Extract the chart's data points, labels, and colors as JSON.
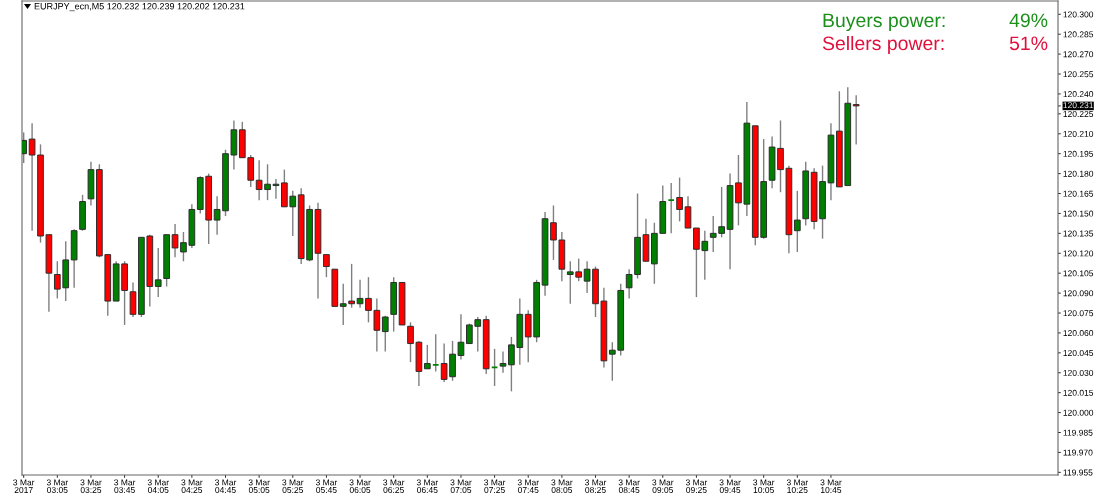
{
  "chart_data": {
    "type": "candlestick",
    "title": "EURJPY_ecn,M5 120.232 120.239 120.202 120.231",
    "x": [
      "2017-03-03T02:45",
      "2017-03-03T02:50",
      "2017-03-03T02:55",
      "2017-03-03T03:00",
      "2017-03-03T03:05",
      "2017-03-03T03:10",
      "2017-03-03T03:15",
      "2017-03-03T03:20",
      "2017-03-03T03:25",
      "2017-03-03T03:30",
      "2017-03-03T03:35",
      "2017-03-03T03:40",
      "2017-03-03T03:45",
      "2017-03-03T03:50",
      "2017-03-03T03:55",
      "2017-03-03T04:00",
      "2017-03-03T04:05",
      "2017-03-03T04:10",
      "2017-03-03T04:15",
      "2017-03-03T04:20",
      "2017-03-03T04:25",
      "2017-03-03T04:30",
      "2017-03-03T04:35",
      "2017-03-03T04:40",
      "2017-03-03T04:45",
      "2017-03-03T04:50",
      "2017-03-03T04:55",
      "2017-03-03T05:00",
      "2017-03-03T05:05",
      "2017-03-03T05:10",
      "2017-03-03T05:15",
      "2017-03-03T05:20",
      "2017-03-03T05:25",
      "2017-03-03T05:30",
      "2017-03-03T05:35",
      "2017-03-03T05:40",
      "2017-03-03T05:45",
      "2017-03-03T05:50",
      "2017-03-03T05:55",
      "2017-03-03T06:00",
      "2017-03-03T06:05",
      "2017-03-03T06:10",
      "2017-03-03T06:15",
      "2017-03-03T06:20",
      "2017-03-03T06:25",
      "2017-03-03T06:30",
      "2017-03-03T06:35",
      "2017-03-03T06:40",
      "2017-03-03T06:45",
      "2017-03-03T06:50",
      "2017-03-03T06:55",
      "2017-03-03T07:00",
      "2017-03-03T07:05",
      "2017-03-03T07:10",
      "2017-03-03T07:15",
      "2017-03-03T07:20",
      "2017-03-03T07:25",
      "2017-03-03T07:30",
      "2017-03-03T07:35",
      "2017-03-03T07:40",
      "2017-03-03T07:45",
      "2017-03-03T07:50",
      "2017-03-03T07:55",
      "2017-03-03T08:00",
      "2017-03-03T08:05",
      "2017-03-03T08:10",
      "2017-03-03T08:15",
      "2017-03-03T08:20",
      "2017-03-03T08:25",
      "2017-03-03T08:30",
      "2017-03-03T08:35",
      "2017-03-03T08:40",
      "2017-03-03T08:45",
      "2017-03-03T08:50",
      "2017-03-03T08:55",
      "2017-03-03T09:00",
      "2017-03-03T09:05",
      "2017-03-03T09:10",
      "2017-03-03T09:15",
      "2017-03-03T09:20",
      "2017-03-03T09:25",
      "2017-03-03T09:30",
      "2017-03-03T09:35",
      "2017-03-03T09:40",
      "2017-03-03T09:45",
      "2017-03-03T09:50",
      "2017-03-03T09:55",
      "2017-03-03T10:00",
      "2017-03-03T10:05",
      "2017-03-03T10:10",
      "2017-03-03T10:15",
      "2017-03-03T10:20",
      "2017-03-03T10:25",
      "2017-03-03T10:30",
      "2017-03-03T10:35",
      "2017-03-03T10:40",
      "2017-03-03T10:45",
      "2017-03-03T10:50",
      "2017-03-03T10:55",
      "2017-03-03T11:00"
    ],
    "ohlc": [
      [
        120.195,
        120.211,
        120.188,
        120.205
      ],
      [
        120.206,
        120.218,
        120.137,
        120.194
      ],
      [
        120.194,
        120.202,
        120.128,
        120.133
      ],
      [
        120.134,
        120.134,
        120.076,
        120.105
      ],
      [
        120.104,
        120.114,
        120.086,
        120.093
      ],
      [
        120.094,
        120.129,
        120.084,
        120.115
      ],
      [
        120.115,
        120.138,
        120.094,
        120.137
      ],
      [
        120.138,
        120.164,
        120.137,
        120.159
      ],
      [
        120.161,
        120.189,
        120.156,
        120.183
      ],
      [
        120.183,
        120.187,
        120.117,
        120.118
      ],
      [
        120.119,
        120.119,
        120.073,
        120.084
      ],
      [
        120.084,
        120.114,
        120.084,
        120.112
      ],
      [
        120.112,
        120.114,
        120.066,
        120.092
      ],
      [
        120.091,
        120.098,
        120.072,
        120.074
      ],
      [
        120.074,
        120.132,
        120.072,
        120.132
      ],
      [
        120.133,
        120.134,
        120.08,
        120.095
      ],
      [
        120.095,
        120.124,
        120.087,
        120.1
      ],
      [
        120.101,
        120.134,
        120.095,
        120.134
      ],
      [
        120.134,
        120.142,
        120.117,
        120.124
      ],
      [
        120.121,
        120.136,
        120.114,
        120.128
      ],
      [
        120.126,
        120.157,
        120.124,
        120.153
      ],
      [
        120.153,
        120.178,
        120.15,
        120.177
      ],
      [
        120.178,
        120.18,
        120.127,
        120.145
      ],
      [
        120.145,
        120.163,
        120.134,
        120.153
      ],
      [
        120.152,
        120.198,
        120.148,
        120.195
      ],
      [
        120.194,
        120.22,
        120.183,
        120.213
      ],
      [
        120.213,
        120.219,
        120.192,
        120.192
      ],
      [
        120.192,
        120.194,
        120.17,
        120.175
      ],
      [
        120.175,
        120.19,
        120.16,
        120.168
      ],
      [
        120.168,
        120.187,
        120.16,
        120.172
      ],
      [
        120.171,
        120.176,
        120.161,
        120.172
      ],
      [
        120.173,
        120.183,
        120.155,
        120.155
      ],
      [
        120.155,
        120.167,
        120.133,
        120.163
      ],
      [
        120.164,
        120.169,
        120.112,
        120.116
      ],
      [
        120.115,
        120.156,
        120.114,
        120.153
      ],
      [
        120.153,
        120.158,
        120.086,
        120.12
      ],
      [
        120.119,
        120.119,
        120.102,
        120.11
      ],
      [
        120.108,
        120.108,
        120.08,
        120.08
      ],
      [
        120.08,
        120.097,
        120.066,
        120.082
      ],
      [
        120.084,
        120.112,
        120.079,
        120.082
      ],
      [
        120.082,
        120.1,
        120.079,
        120.086
      ],
      [
        120.086,
        120.102,
        120.068,
        120.077
      ],
      [
        120.077,
        120.086,
        120.046,
        120.062
      ],
      [
        120.061,
        120.073,
        120.046,
        120.072
      ],
      [
        120.074,
        120.102,
        120.061,
        120.098
      ],
      [
        120.098,
        120.098,
        120.066,
        120.066
      ],
      [
        120.065,
        120.068,
        120.038,
        120.052
      ],
      [
        120.053,
        120.054,
        120.02,
        120.031
      ],
      [
        120.033,
        120.051,
        120.033,
        120.037
      ],
      [
        120.036,
        120.059,
        120.031,
        120.036
      ],
      [
        120.037,
        120.052,
        120.023,
        120.025
      ],
      [
        120.027,
        120.054,
        120.024,
        120.044
      ],
      [
        120.043,
        120.074,
        120.04,
        120.053
      ],
      [
        120.052,
        120.067,
        120.052,
        120.066
      ],
      [
        120.065,
        120.072,
        120.046,
        120.07
      ],
      [
        120.07,
        120.073,
        120.029,
        120.033
      ],
      [
        120.034,
        120.048,
        120.02,
        120.034
      ],
      [
        120.035,
        120.046,
        120.03,
        120.037
      ],
      [
        120.036,
        120.057,
        120.016,
        120.051
      ],
      [
        120.049,
        120.086,
        120.036,
        120.074
      ],
      [
        120.074,
        120.077,
        120.038,
        120.057
      ],
      [
        120.057,
        120.1,
        120.053,
        120.098
      ],
      [
        120.096,
        120.151,
        120.088,
        120.146
      ],
      [
        120.143,
        120.156,
        120.115,
        120.13
      ],
      [
        120.13,
        120.136,
        120.099,
        120.108
      ],
      [
        120.104,
        120.114,
        120.082,
        120.106
      ],
      [
        120.106,
        120.116,
        120.099,
        120.102
      ],
      [
        120.099,
        120.114,
        120.09,
        120.108
      ],
      [
        120.108,
        120.11,
        120.072,
        120.082
      ],
      [
        120.084,
        120.094,
        120.034,
        120.039
      ],
      [
        120.044,
        120.053,
        120.024,
        120.047
      ],
      [
        120.047,
        120.097,
        120.043,
        120.092
      ],
      [
        120.094,
        120.108,
        120.086,
        120.104
      ],
      [
        120.104,
        120.165,
        120.101,
        120.132
      ],
      [
        120.134,
        120.146,
        120.114,
        120.114
      ],
      [
        120.112,
        120.143,
        120.097,
        120.135
      ],
      [
        120.135,
        120.171,
        120.135,
        120.159
      ],
      [
        120.16,
        120.173,
        120.135,
        120.16
      ],
      [
        120.162,
        120.177,
        120.144,
        120.153
      ],
      [
        120.155,
        120.163,
        120.139,
        120.139
      ],
      [
        120.139,
        120.139,
        120.087,
        120.123
      ],
      [
        120.122,
        120.137,
        120.1,
        120.129
      ],
      [
        120.132,
        120.148,
        120.121,
        120.135
      ],
      [
        120.135,
        120.17,
        120.132,
        120.14
      ],
      [
        120.138,
        120.18,
        120.108,
        120.171
      ],
      [
        120.173,
        120.194,
        120.141,
        120.158
      ],
      [
        120.157,
        120.234,
        120.148,
        120.218
      ],
      [
        120.216,
        120.216,
        120.126,
        120.132
      ],
      [
        120.132,
        120.206,
        120.131,
        120.174
      ],
      [
        120.175,
        120.208,
        120.169,
        120.2
      ],
      [
        120.199,
        120.22,
        120.166,
        120.183
      ],
      [
        120.184,
        120.186,
        120.12,
        120.134
      ],
      [
        120.137,
        120.167,
        120.121,
        120.145
      ],
      [
        120.146,
        120.189,
        120.141,
        120.182
      ],
      [
        120.181,
        120.184,
        120.138,
        120.144
      ],
      [
        120.146,
        120.186,
        120.131,
        120.174
      ],
      [
        120.173,
        120.218,
        120.16,
        120.209
      ],
      [
        120.212,
        120.242,
        120.17,
        120.17
      ],
      [
        120.171,
        120.245,
        120.171,
        120.233
      ],
      [
        120.232,
        120.239,
        120.202,
        120.231
      ]
    ],
    "colors": [
      "#008000",
      "#ff0000",
      "#ff0000",
      "#ff0000",
      "#ff0000",
      "#008000",
      "#008000",
      "#008000",
      "#008000",
      "#ff0000",
      "#ff0000",
      "#008000",
      "#ff0000",
      "#ff0000",
      "#008000",
      "#ff0000",
      "#008000",
      "#008000",
      "#ff0000",
      "#008000",
      "#008000",
      "#008000",
      "#ff0000",
      "#008000",
      "#008000",
      "#008000",
      "#ff0000",
      "#ff0000",
      "#ff0000",
      "#008000",
      "#008000",
      "#ff0000",
      "#008000",
      "#ff0000",
      "#008000",
      "#ff0000",
      "#ff0000",
      "#ff0000",
      "#008000",
      "#ff0000",
      "#008000",
      "#ff0000",
      "#ff0000",
      "#008000",
      "#008000",
      "#ff0000",
      "#ff0000",
      "#ff0000",
      "#008000",
      "#008000",
      "#ff0000",
      "#008000",
      "#008000",
      "#008000",
      "#008000",
      "#ff0000",
      "#008000",
      "#008000",
      "#008000",
      "#008000",
      "#ff0000",
      "#008000",
      "#008000",
      "#ff0000",
      "#ff0000",
      "#008000",
      "#ff0000",
      "#008000",
      "#ff0000",
      "#ff0000",
      "#008000",
      "#008000",
      "#008000",
      "#008000",
      "#ff0000",
      "#008000",
      "#008000",
      "#008000",
      "#ff0000",
      "#ff0000",
      "#ff0000",
      "#008000",
      "#008000",
      "#008000",
      "#008000",
      "#ff0000",
      "#008000",
      "#ff0000",
      "#008000",
      "#008000",
      "#ff0000",
      "#ff0000",
      "#008000",
      "#008000",
      "#ff0000",
      "#008000",
      "#008000",
      "#ff0000",
      "#008000",
      "#ff0000"
    ],
    "xlim": [
      "2017-03-03T02:44",
      "2017-03-03T13:00"
    ],
    "ylim": [
      119.953,
      120.31
    ],
    "xticks": [
      {
        "value": "2017-03-03T02:45",
        "label": "3 Mar 2017"
      },
      {
        "value": "2017-03-03T03:05",
        "label": "3 Mar 03:05"
      },
      {
        "value": "2017-03-03T03:25",
        "label": "3 Mar 03:25"
      },
      {
        "value": "2017-03-03T03:45",
        "label": "3 Mar 03:45"
      },
      {
        "value": "2017-03-03T04:05",
        "label": "3 Mar 04:05"
      },
      {
        "value": "2017-03-03T04:25",
        "label": "3 Mar 04:25"
      },
      {
        "value": "2017-03-03T04:45",
        "label": "3 Mar 04:45"
      },
      {
        "value": "2017-03-03T05:05",
        "label": "3 Mar 05:05"
      },
      {
        "value": "2017-03-03T05:25",
        "label": "3 Mar 05:25"
      },
      {
        "value": "2017-03-03T05:45",
        "label": "3 Mar 05:45"
      },
      {
        "value": "2017-03-03T06:05",
        "label": "3 Mar 06:05"
      },
      {
        "value": "2017-03-03T06:25",
        "label": "3 Mar 06:25"
      },
      {
        "value": "2017-03-03T06:45",
        "label": "3 Mar 06:45"
      },
      {
        "value": "2017-03-03T07:05",
        "label": "3 Mar 07:05"
      },
      {
        "value": "2017-03-03T07:25",
        "label": "3 Mar 07:25"
      },
      {
        "value": "2017-03-03T07:45",
        "label": "3 Mar 07:45"
      },
      {
        "value": "2017-03-03T08:05",
        "label": "3 Mar 08:05"
      },
      {
        "value": "2017-03-03T08:25",
        "label": "3 Mar 08:25"
      },
      {
        "value": "2017-03-03T08:45",
        "label": "3 Mar 08:45"
      },
      {
        "value": "2017-03-03T09:05",
        "label": "3 Mar 09:05"
      },
      {
        "value": "2017-03-03T09:25",
        "label": "3 Mar 09:25"
      },
      {
        "value": "2017-03-03T09:45",
        "label": "3 Mar 09:45"
      },
      {
        "value": "2017-03-03T10:05",
        "label": "3 Mar 10:05"
      },
      {
        "value": "2017-03-03T10:25",
        "label": "3 Mar 10:25"
      },
      {
        "value": "2017-03-03T10:45",
        "label": "3 Mar 10:45"
      }
    ],
    "yticks": [
      {
        "value": 119.955,
        "label": "119.955"
      },
      {
        "value": 119.97,
        "label": "119.970"
      },
      {
        "value": 119.985,
        "label": "119.985"
      },
      {
        "value": 120.0,
        "label": "120.000"
      },
      {
        "value": 120.015,
        "label": "120.015"
      },
      {
        "value": 120.03,
        "label": "120.030"
      },
      {
        "value": 120.045,
        "label": "120.045"
      },
      {
        "value": 120.06,
        "label": "120.060"
      },
      {
        "value": 120.075,
        "label": "120.075"
      },
      {
        "value": 120.09,
        "label": "120.090"
      },
      {
        "value": 120.105,
        "label": "120.105"
      },
      {
        "value": 120.12,
        "label": "120.120"
      },
      {
        "value": 120.135,
        "label": "120.135"
      },
      {
        "value": 120.15,
        "label": "120.150"
      },
      {
        "value": 120.165,
        "label": "120.165"
      },
      {
        "value": 120.18,
        "label": "120.180"
      },
      {
        "value": 120.195,
        "label": "120.195"
      },
      {
        "value": 120.21,
        "label": "120.210"
      },
      {
        "value": 120.225,
        "label": "120.225"
      },
      {
        "value": 120.231,
        "label": "120.231"
      },
      {
        "value": 120.24,
        "label": "120.240"
      },
      {
        "value": 120.255,
        "label": "120.255"
      },
      {
        "value": 120.27,
        "label": "120.270"
      },
      {
        "value": 120.285,
        "label": "120.285"
      },
      {
        "value": 120.3,
        "label": "120.300"
      }
    ],
    "annotations": [
      "Buyers power:",
      "49%",
      "Sellers power:",
      "51%"
    ]
  }
}
